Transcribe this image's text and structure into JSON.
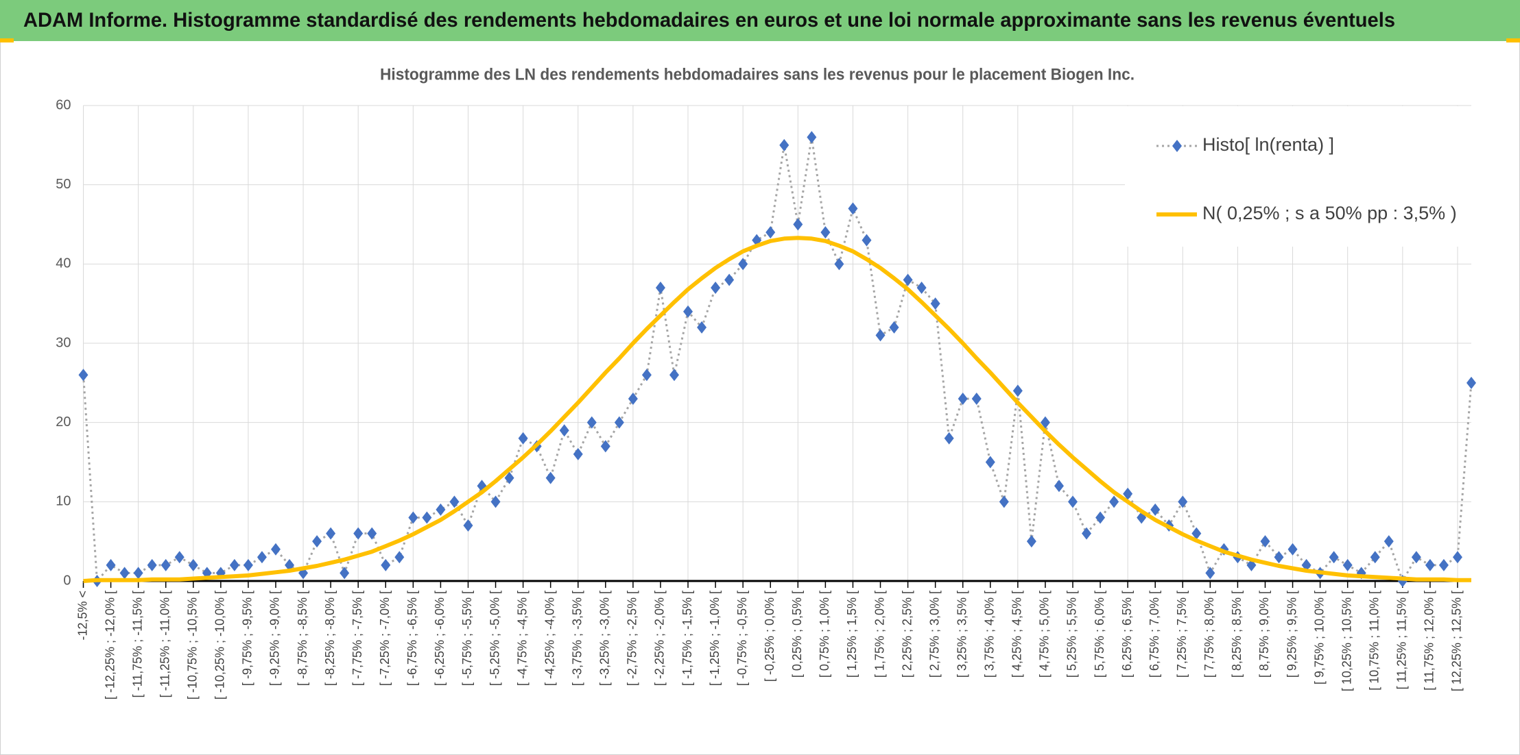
{
  "header": {
    "title": "ADAM Informe. Histogramme standardisé des rendements hebdomadaires en euros et une loi normale approximante sans les revenus éventuels"
  },
  "chart_data": {
    "type": "line",
    "title": "Histogramme des LN des rendements hebdomadaires sans les revenus pour le placement Biogen Inc.",
    "categories": [
      "-12,5% <",
      null,
      "[ -12,25% ; -12,0% [",
      null,
      "[ -11,75% ; -11,5% [",
      null,
      "[ -11,25% ; -11,0% [",
      null,
      "[ -10,75% ; -10,5% [",
      null,
      "[ -10,25% ; -10,0% [",
      null,
      "[ -9,75% ; -9,5% [",
      null,
      "[ -9,25% ; -9,0% [",
      null,
      "[ -8,75% ; -8,5% [",
      null,
      "[ -8,25% ; -8,0% [",
      null,
      "[ -7,75% ; -7,5% [",
      null,
      "[ -7,25% ; -7,0% [",
      null,
      "[ -6,75% ; -6,5% [",
      null,
      "[ -6,25% ; -6,0% [",
      null,
      "[ -5,75% ; -5,5% [",
      null,
      "[ -5,25% ; -5,0% [",
      null,
      "[ -4,75% ; -4,5% [",
      null,
      "[ -4,25% ; -4,0% [",
      null,
      "[ -3,75% ; -3,5% [",
      null,
      "[ -3,25% ; -3,0% [",
      null,
      "[ -2,75% ; -2,5% [",
      null,
      "[ -2,25% ; -2,0% [",
      null,
      "[ -1,75% ; -1,5% [",
      null,
      "[ -1,25% ; -1,0% [",
      null,
      "[ -0,75% ; -0,5% [",
      null,
      "[ -0,25% ; 0,0% [",
      null,
      "[ 0,25% ; 0,5% [",
      null,
      "[ 0,75% ; 1,0% [",
      null,
      "[ 1,25% ; 1,5% [",
      null,
      "[ 1,75% ; 2,0% [",
      null,
      "[ 2,25% ; 2,5% [",
      null,
      "[ 2,75% ; 3,0% [",
      null,
      "[ 3,25% ; 3,5% [",
      null,
      "[ 3,75% ; 4,0% [",
      null,
      "[ 4,25% ; 4,5% [",
      null,
      "[ 4,75% ; 5,0% [",
      null,
      "[ 5,25% ; 5,5% [",
      null,
      "[ 5,75% ; 6,0% [",
      null,
      "[ 6,25% ; 6,5% [",
      null,
      "[ 6,75% ; 7,0% [",
      null,
      "[ 7,25% ; 7,5% [",
      null,
      "[ 7,75% ; 8,0% [",
      null,
      "[ 8,25% ; 8,5% [",
      null,
      "[ 8,75% ; 9,0% [",
      null,
      "[ 9,25% ; 9,5% [",
      null,
      "[ 9,75% ; 10,0% [",
      null,
      "[ 10,25% ; 10,5% [",
      null,
      "[ 10,75% ; 11,0% [",
      null,
      "[ 11,25% ; 11,5% [",
      null,
      "[ 11,75% ; 12,0% [",
      null,
      "[ 12,25% ; 12,5% [",
      null
    ],
    "series": [
      {
        "name": "Histo[ ln(renta) ]",
        "color": "#4472c4",
        "line_color": "#a5a5a5",
        "values": [
          26,
          0,
          2,
          1,
          1,
          2,
          2,
          3,
          2,
          1,
          1,
          2,
          2,
          3,
          4,
          2,
          1,
          5,
          6,
          1,
          6,
          6,
          2,
          3,
          8,
          8,
          9,
          10,
          7,
          12,
          10,
          13,
          18,
          17,
          13,
          19,
          16,
          20,
          17,
          20,
          23,
          26,
          37,
          26,
          34,
          32,
          37,
          38,
          40,
          43,
          44,
          55,
          45,
          56,
          44,
          40,
          47,
          43,
          31,
          32,
          38,
          37,
          35,
          18,
          23,
          23,
          15,
          10,
          24,
          5,
          20,
          12,
          10,
          6,
          8,
          10,
          11,
          8,
          9,
          7,
          10,
          6,
          1,
          4,
          3,
          2,
          5,
          3,
          4,
          2,
          1,
          3,
          2,
          1,
          3,
          5,
          0,
          3,
          2,
          2,
          3,
          25
        ]
      },
      {
        "name": "N( 0,25% ; s a 50% pp : 3,5% )",
        "color": "#ffc000",
        "values": [
          0.0,
          0.1,
          0.1,
          0.1,
          0.1,
          0.2,
          0.2,
          0.2,
          0.3,
          0.4,
          0.5,
          0.6,
          0.7,
          0.9,
          1.1,
          1.3,
          1.6,
          1.9,
          2.3,
          2.7,
          3.2,
          3.7,
          4.4,
          5.1,
          5.9,
          6.8,
          7.7,
          8.8,
          10.0,
          11.2,
          12.6,
          14.1,
          15.6,
          17.2,
          18.9,
          20.7,
          22.5,
          24.4,
          26.3,
          28.1,
          30.0,
          31.8,
          33.5,
          35.2,
          36.8,
          38.2,
          39.5,
          40.6,
          41.6,
          42.3,
          42.9,
          43.2,
          43.3,
          43.2,
          42.9,
          42.3,
          41.6,
          40.6,
          39.5,
          38.2,
          36.8,
          35.2,
          33.5,
          31.8,
          30.0,
          28.1,
          26.3,
          24.4,
          22.5,
          20.7,
          18.9,
          17.2,
          15.6,
          14.1,
          12.6,
          11.2,
          10.0,
          8.8,
          7.7,
          6.8,
          5.9,
          5.1,
          4.4,
          3.7,
          3.2,
          2.7,
          2.3,
          1.9,
          1.6,
          1.3,
          1.1,
          0.9,
          0.7,
          0.6,
          0.5,
          0.4,
          0.3,
          0.2,
          0.2,
          0.2,
          0.1,
          0.1
        ]
      }
    ],
    "ylim": [
      0,
      60
    ],
    "yticks": [
      0,
      10,
      20,
      30,
      40,
      50,
      60
    ],
    "grid": true,
    "legend": "upper right"
  }
}
